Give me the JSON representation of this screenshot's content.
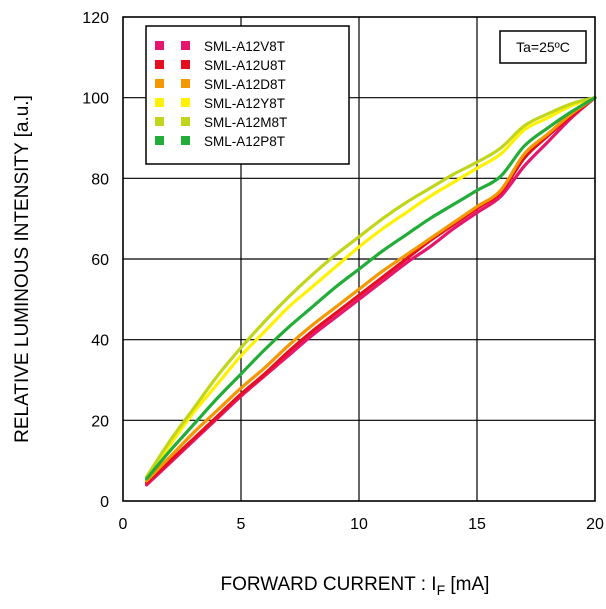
{
  "chart_data": {
    "type": "line",
    "xlabel": "FORWARD CURRENT : I",
    "xlabel_subscript": "F",
    "xlabel_unit": "[mA]",
    "ylabel": "RELATIVE LUMINOUS INTENSITY [a.u.]",
    "xlim": [
      0,
      20
    ],
    "ylim": [
      0,
      120
    ],
    "xticks": [
      0,
      5,
      10,
      15,
      20
    ],
    "yticks": [
      0,
      20,
      40,
      60,
      80,
      100,
      120
    ],
    "grid": true,
    "legend_position": "top-left",
    "annotation": "Ta=25ºC",
    "x": [
      1,
      2,
      3,
      4,
      5,
      6,
      7,
      8,
      9,
      10,
      11,
      12,
      13,
      14,
      15,
      16,
      17,
      18,
      19,
      20
    ],
    "series": [
      {
        "name": "SML-A12V8T",
        "color": "#e6166e",
        "values": [
          4,
          9.5,
          15,
          20.5,
          26,
          31,
          36,
          41,
          45.5,
          50,
          54.5,
          59,
          63,
          67.5,
          71.5,
          75.5,
          83,
          89,
          95,
          100
        ]
      },
      {
        "name": "SML-A12U8T",
        "color": "#e60f22",
        "values": [
          4.5,
          10,
          15.5,
          21,
          26.5,
          31.5,
          37,
          42,
          46.5,
          51,
          55.5,
          60,
          64.5,
          68.5,
          72.5,
          76.5,
          85,
          90.5,
          95.5,
          100
        ]
      },
      {
        "name": "SML-A12D8T",
        "color": "#f39800",
        "values": [
          5,
          11,
          17,
          22.5,
          28,
          33,
          38.5,
          43.5,
          48,
          52.5,
          57,
          61,
          65,
          69,
          73,
          77,
          86,
          91,
          96,
          100
        ]
      },
      {
        "name": "SML-A12Y8T",
        "color": "#fff100",
        "values": [
          6,
          14,
          22,
          29,
          36,
          42,
          48,
          53,
          58,
          63,
          67.5,
          71.5,
          75.5,
          79,
          82.5,
          86,
          92,
          95,
          98,
          100
        ]
      },
      {
        "name": "SML-A12M8T",
        "color": "#c1d61a",
        "values": [
          6,
          15,
          23,
          31,
          38,
          44.5,
          50.5,
          56,
          61,
          65.5,
          70,
          74,
          77.5,
          81,
          84,
          87.5,
          93,
          96,
          98.5,
          100
        ]
      },
      {
        "name": "SML-A12P8T",
        "color": "#22ac38",
        "values": [
          5.5,
          12.5,
          19,
          25.5,
          31.5,
          37.5,
          43,
          48,
          53,
          57.5,
          62,
          66,
          70,
          73.5,
          77,
          80.5,
          88,
          92.5,
          96.5,
          100
        ]
      }
    ]
  }
}
